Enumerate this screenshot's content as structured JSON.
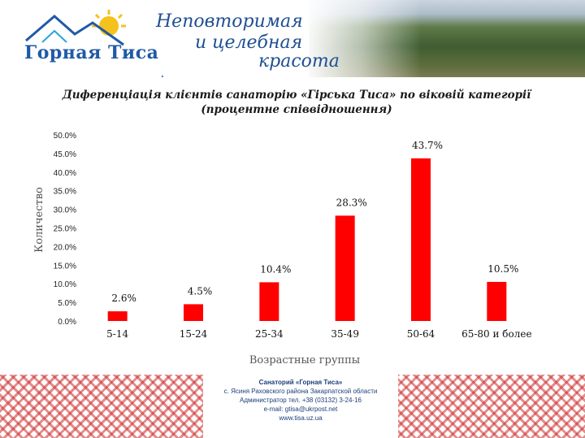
{
  "header": {
    "logo_text": "Горная Тиса",
    "slogan_line1": "Неповторимая",
    "slogan_line2": "и целебная",
    "slogan_line3": "красота"
  },
  "chart_data": {
    "type": "bar",
    "title_line1": "Диференціація клієнтів санаторію «Гірська Тиса» по віковій категорії",
    "title_line2": "(процентне співвідношення)",
    "xlabel": "Возрастные группы",
    "ylabel": "Количество",
    "categories": [
      "5-14",
      "15-24",
      "25-34",
      "35-49",
      "50-64",
      "65-80 и более"
    ],
    "values": [
      2.6,
      4.5,
      10.4,
      28.3,
      43.7,
      10.5
    ],
    "value_labels": [
      "2.6%",
      "4.5%",
      "10.4%",
      "28.3%",
      "43.7%",
      "10.5%"
    ],
    "ylim": [
      0,
      50
    ],
    "yticks": [
      "0.0%",
      "5.0%",
      "10.0%",
      "15.0%",
      "20.0%",
      "25.0%",
      "30.0%",
      "35.0%",
      "40.0%",
      "45.0%",
      "50.0%"
    ],
    "bar_color": "#ff0000",
    "grid": false
  },
  "footer": {
    "name": "Санаторий «Горная Тиса»",
    "address": "с. Ясиня Раховского района Закарпатской области",
    "phone": "Администратор тел. +38 (03132) 3-24-16",
    "email": "e-mail: gtisa@ukrpost.net",
    "site": "www.tisa.uz.ua"
  }
}
